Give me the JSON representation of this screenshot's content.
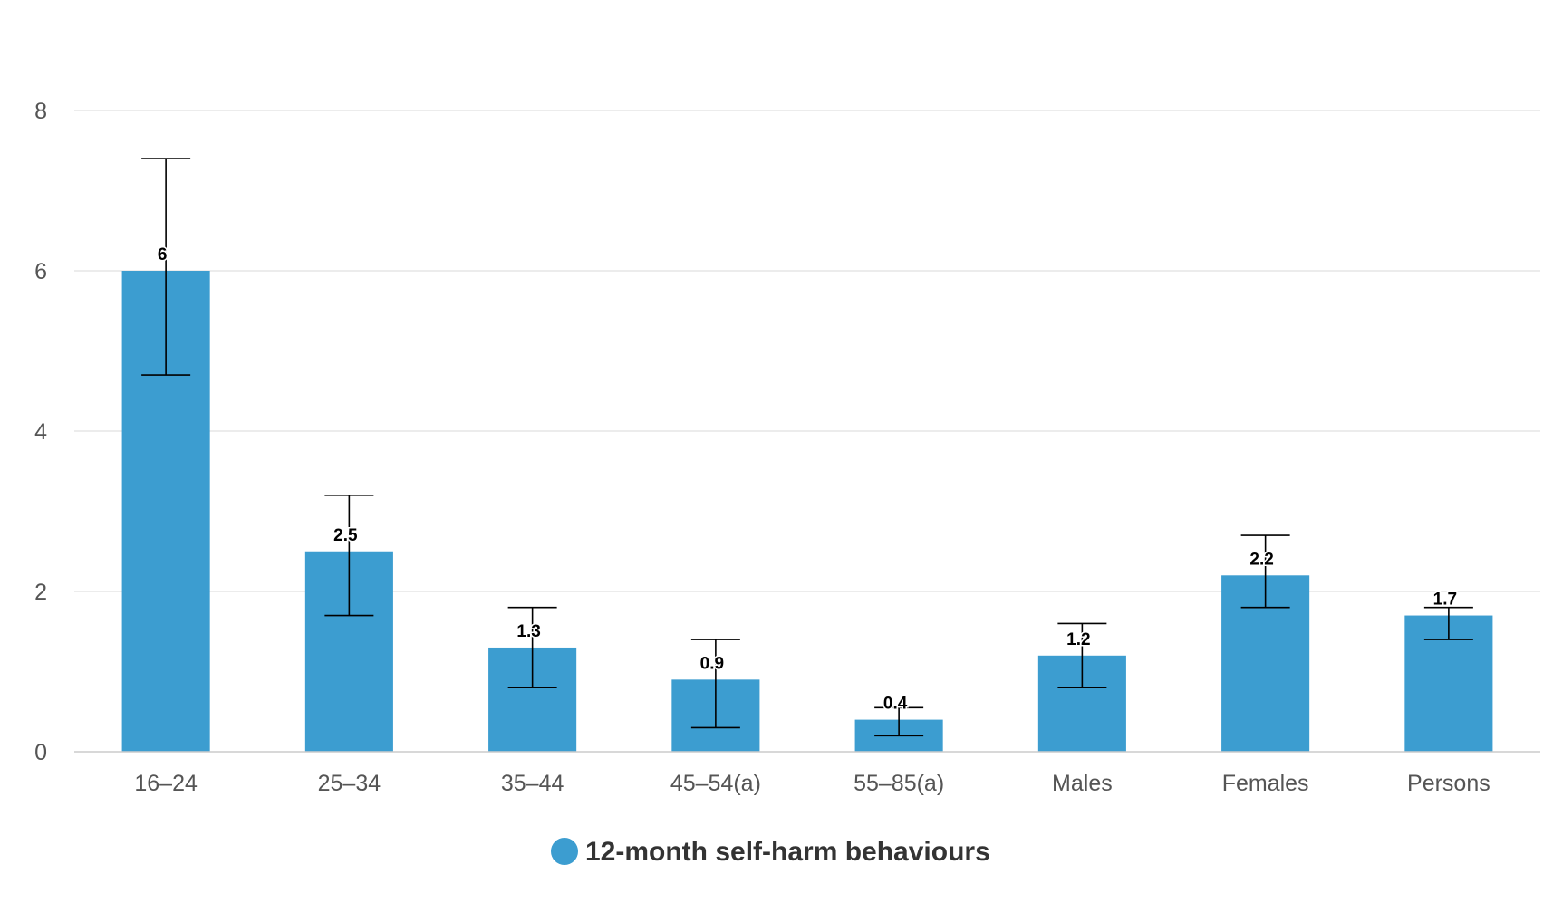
{
  "chart_data": {
    "type": "bar",
    "title": "",
    "xlabel": "",
    "ylabel": "",
    "ylim": [
      0,
      8
    ],
    "y_ticks": [
      "0",
      "2",
      "4",
      "6",
      "8"
    ],
    "categories": [
      "16–24",
      "25–34",
      "35–44",
      "45–54(a)",
      "55–85(a)",
      "Males",
      "Females",
      "Persons"
    ],
    "series": [
      {
        "name": "12-month self-harm behaviours",
        "values": [
          6,
          2.5,
          1.3,
          0.9,
          0.4,
          1.2,
          2.2,
          1.7
        ],
        "value_labels": [
          "6",
          "2.5",
          "1.3",
          "0.9",
          "0.4",
          "1.2",
          "2.2",
          "1.7"
        ],
        "error_low": [
          4.7,
          1.7,
          0.8,
          0.3,
          0.2,
          0.8,
          1.8,
          1.4
        ],
        "error_high": [
          7.4,
          3.2,
          1.8,
          1.4,
          0.55,
          1.6,
          2.7,
          1.8
        ],
        "color": "#3c9dd0"
      }
    ],
    "grid": true,
    "legend_position": "bottom-center"
  }
}
